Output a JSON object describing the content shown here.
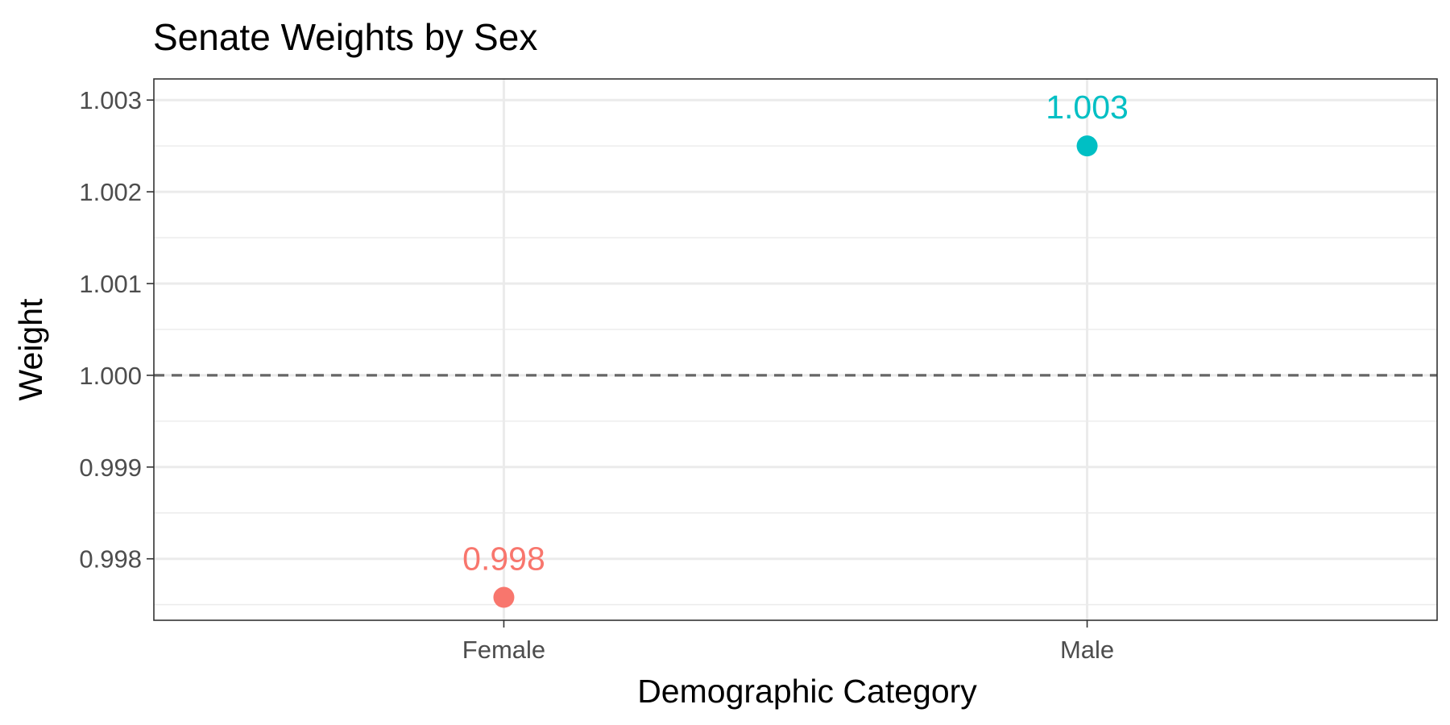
{
  "chart_data": {
    "type": "scatter",
    "title": "Senate Weights by Sex",
    "xlabel": "Demographic Category",
    "ylabel": "Weight",
    "categories": [
      "Female",
      "Male"
    ],
    "points": [
      {
        "category": "Female",
        "value": 0.99758,
        "label": "0.998",
        "color": "#F8766D"
      },
      {
        "category": "Male",
        "value": 1.0025,
        "label": "1.003",
        "color": "#00BFC4"
      }
    ],
    "ylim": [
      0.99733,
      1.00323
    ],
    "y_ticks": [
      0.998,
      0.999,
      1.0,
      1.001,
      1.002,
      1.003
    ],
    "y_tick_labels": [
      "0.998",
      "0.999",
      "1.000",
      "1.001",
      "1.002",
      "1.003"
    ],
    "reference_line": {
      "value": 1.0,
      "style": "dashed",
      "color": "#666666"
    },
    "grid": true,
    "legend": "none"
  }
}
